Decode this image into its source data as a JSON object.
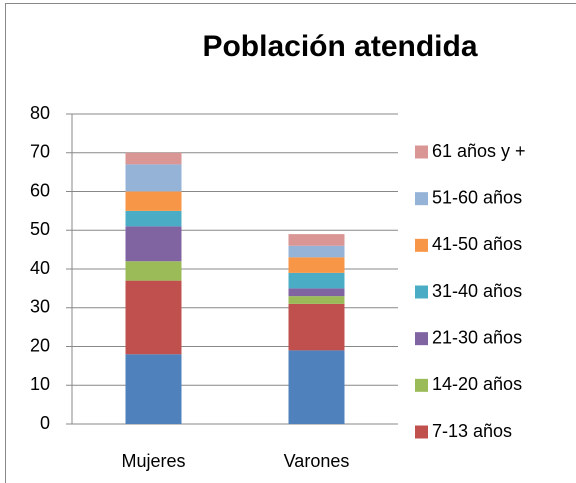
{
  "chart_data": {
    "type": "stacked_bar",
    "title": "Población atendida",
    "categories": [
      "Mujeres",
      "Varones"
    ],
    "series": [
      {
        "color": "#4f81bd",
        "values": [
          18,
          19
        ]
      },
      {
        "name": "7-13 años",
        "color": "#c0504d",
        "values": [
          19,
          12
        ]
      },
      {
        "name": "14-20 años",
        "color": "#9bbb59",
        "values": [
          5,
          2
        ]
      },
      {
        "name": "21-30 años",
        "color": "#8064a2",
        "values": [
          9,
          2
        ]
      },
      {
        "name": "31-40 años",
        "color": "#4bacc6",
        "values": [
          4,
          4
        ]
      },
      {
        "name": "41-50 años",
        "color": "#f79646",
        "values": [
          5,
          4
        ]
      },
      {
        "name": "51-60 años",
        "color": "#95b3d7",
        "values": [
          7,
          3
        ]
      },
      {
        "name": "61 años y +",
        "color": "#d99694",
        "values": [
          3,
          3
        ]
      }
    ],
    "ylim": [
      0,
      80
    ],
    "yticks": [
      0,
      10,
      20,
      30,
      40,
      50,
      60,
      70,
      80
    ],
    "grid": true,
    "legend": "right"
  }
}
